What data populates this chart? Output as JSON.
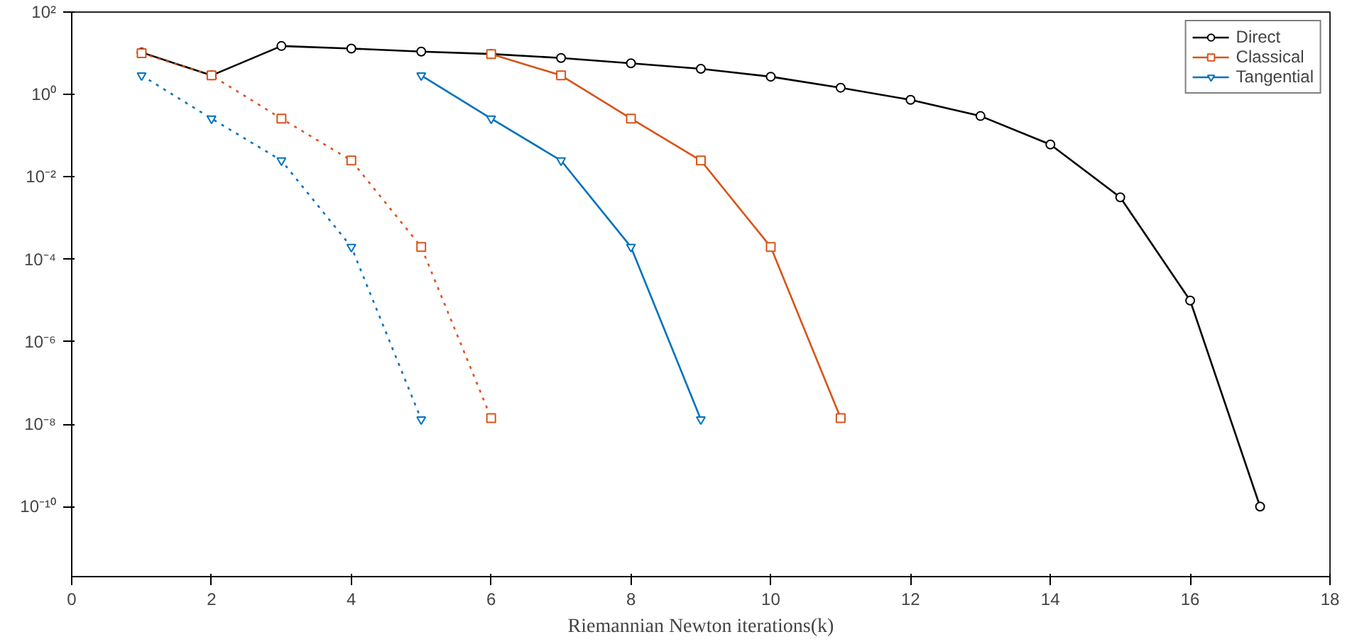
{
  "chart_data": {
    "type": "line",
    "xlabel": "Riemannian Newton iterations(k)",
    "log": "y",
    "xlim": [
      0,
      18
    ],
    "ylim": [
      2e-12,
      100
    ],
    "xticks": [
      0,
      2,
      4,
      6,
      8,
      10,
      12,
      14,
      16,
      18
    ],
    "yticks": [
      {
        "value": 1e-10,
        "label": "10⁻¹⁰"
      },
      {
        "value": 1e-08,
        "label": "10⁻⁸"
      },
      {
        "value": 1e-06,
        "label": "10⁻⁶"
      },
      {
        "value": 0.0001,
        "label": "10⁻⁴"
      },
      {
        "value": 0.01,
        "label": "10⁻²"
      },
      {
        "value": 1,
        "label": "10⁰"
      },
      {
        "value": 100,
        "label": "10²"
      }
    ],
    "grid": false,
    "legend": "top right",
    "series": [
      {
        "name": "Direct",
        "color": "#000000",
        "marker": "circle",
        "line_style": "solid",
        "x": [
          1,
          2,
          3,
          4,
          5,
          6,
          7,
          8,
          9,
          10,
          11,
          12,
          13,
          14,
          15,
          16,
          17
        ],
        "values": [
          10.5,
          2.9,
          15,
          13,
          11,
          9.6,
          7.7,
          5.7,
          4.2,
          2.7,
          1.46,
          0.74,
          0.3,
          0.061,
          0.0032,
          1e-05,
          1e-10
        ]
      },
      {
        "name": "Classical",
        "color": "#d95319",
        "marker": "square",
        "line_style": "solid",
        "x": [
          6,
          7,
          8,
          9,
          10,
          11
        ],
        "values": [
          9.6,
          2.9,
          0.26,
          0.025,
          0.0002,
          1.4e-08
        ]
      },
      {
        "name": "Tangential",
        "color": "#0072bd",
        "marker": "triangle",
        "line_style": "solid",
        "x": [
          5,
          6,
          7,
          8,
          9
        ],
        "values": [
          2.9,
          0.26,
          0.025,
          0.0002,
          1.3e-08
        ]
      },
      {
        "color": "#d95319",
        "marker": "square",
        "line_style": "dotted",
        "x": [
          1,
          2,
          3,
          4,
          5,
          6
        ],
        "values": [
          10,
          2.9,
          0.26,
          0.025,
          0.0002,
          1.4e-08
        ]
      },
      {
        "color": "#0072bd",
        "marker": "triangle",
        "line_style": "dotted",
        "x": [
          1,
          2,
          3,
          4,
          5
        ],
        "values": [
          2.9,
          0.26,
          0.025,
          0.0002,
          1.3e-08
        ]
      }
    ]
  }
}
